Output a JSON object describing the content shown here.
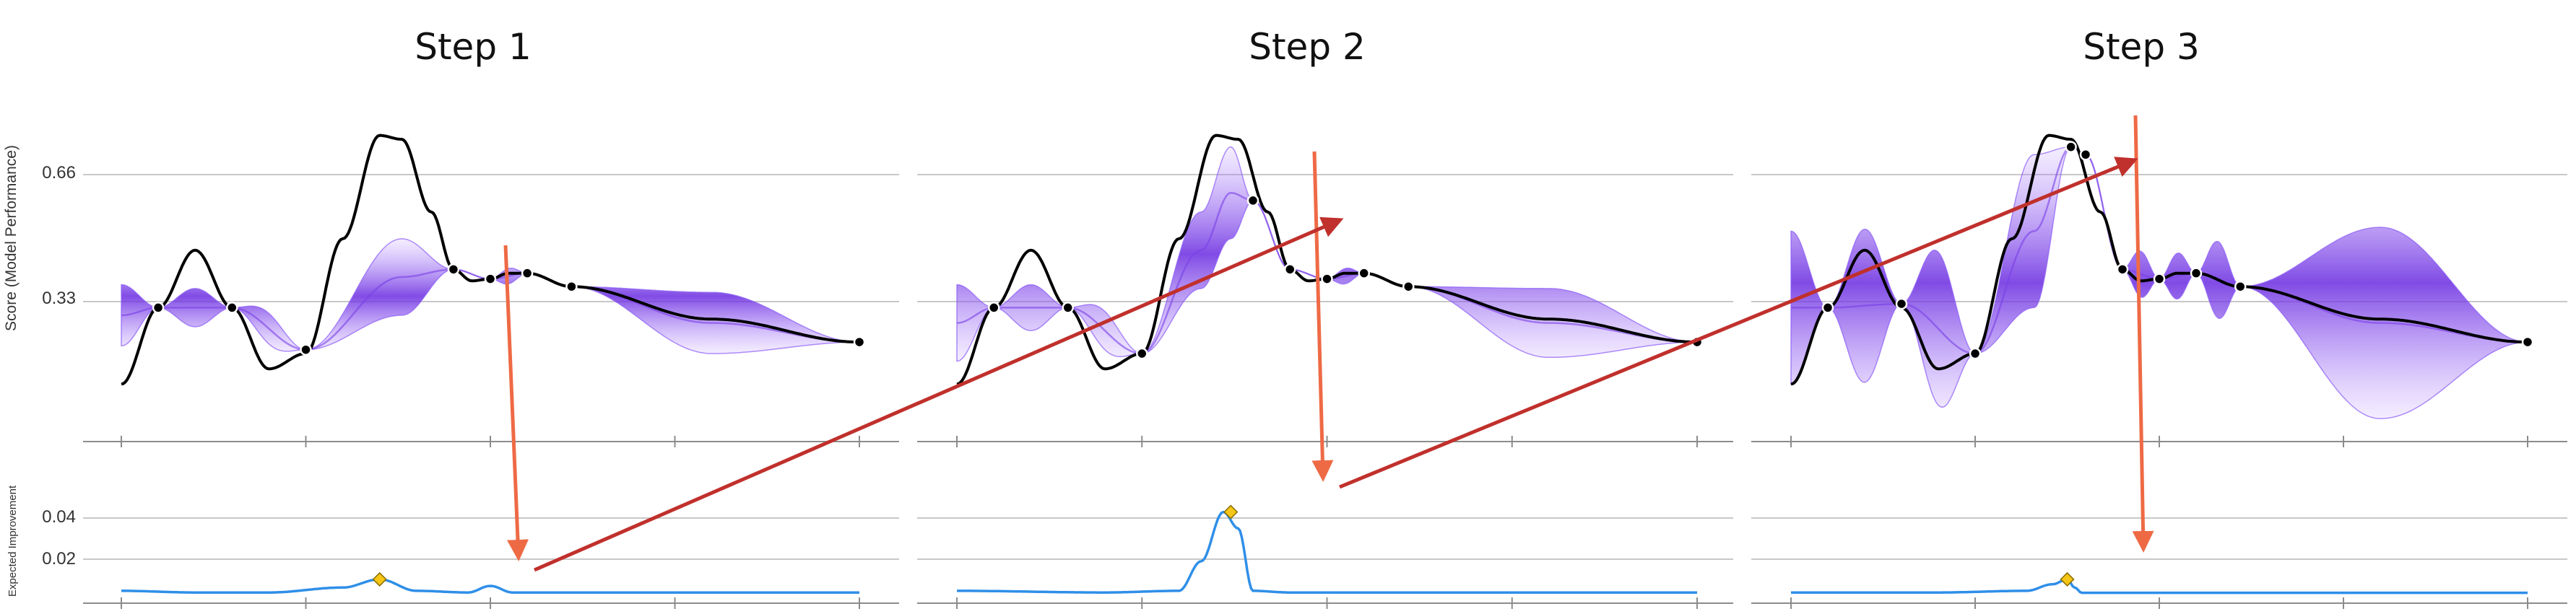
{
  "chart_data": {
    "type": "line",
    "ylabel_top": "Score (Model Performance)",
    "ylabel_bottom": "Expected Improvement",
    "top_yticks": [
      0.33,
      0.66
    ],
    "top_ylim": [
      -0.05,
      0.84
    ],
    "bottom_yticks": [
      0.02,
      0.04
    ],
    "bottom_ylim": [
      -0.002,
      0.063
    ],
    "xlim": [
      0,
      1
    ],
    "x_ticks": [
      0,
      0.25,
      0.5,
      0.75,
      1.0
    ],
    "grid": "horizontal",
    "colors": {
      "objective": "#000000",
      "mean": "#7a3fe6",
      "band": "#8b5cf6",
      "ei": "#2f8fe8",
      "candidate": "#f5c518",
      "red_arrow": "#c0302c",
      "orange_arrow": "#ee6a45"
    },
    "series": [
      {
        "name": "Step 1",
        "observations_x": [
          0.05,
          0.15,
          0.25,
          0.45,
          0.5,
          0.55,
          0.61,
          1.0
        ],
        "mean_points": [
          [
            0.0,
            0.28
          ],
          [
            0.05,
            0.3
          ],
          [
            0.15,
            0.3
          ],
          [
            0.25,
            0.19
          ],
          [
            0.38,
            0.38
          ],
          [
            0.45,
            0.4
          ],
          [
            0.5,
            0.375
          ],
          [
            0.55,
            0.39
          ],
          [
            0.61,
            0.355
          ],
          [
            0.8,
            0.26
          ],
          [
            1.0,
            0.21
          ]
        ],
        "band_width_points": [
          [
            0.0,
            0.08
          ],
          [
            0.05,
            0.0
          ],
          [
            0.1,
            0.05
          ],
          [
            0.15,
            0.0
          ],
          [
            0.2,
            0.04
          ],
          [
            0.25,
            0.0
          ],
          [
            0.38,
            0.1
          ],
          [
            0.45,
            0.0
          ],
          [
            0.5,
            0.0
          ],
          [
            0.525,
            0.02
          ],
          [
            0.55,
            0.0
          ],
          [
            0.61,
            0.0
          ],
          [
            0.8,
            0.08
          ],
          [
            1.0,
            0.0
          ]
        ],
        "ei_points": [
          [
            0.0,
            0.002
          ],
          [
            0.1,
            0.001
          ],
          [
            0.2,
            0.001
          ],
          [
            0.3,
            0.004
          ],
          [
            0.35,
            0.009
          ],
          [
            0.4,
            0.002
          ],
          [
            0.47,
            0.001
          ],
          [
            0.5,
            0.005
          ],
          [
            0.53,
            0.001
          ],
          [
            0.6,
            0.001
          ],
          [
            0.8,
            0.001
          ],
          [
            1.0,
            0.001
          ]
        ],
        "candidate": {
          "x": 0.35,
          "ei": 0.009
        }
      },
      {
        "name": "Step 2",
        "observations_x": [
          0.05,
          0.15,
          0.25,
          0.4,
          0.45,
          0.5,
          0.55,
          0.61,
          1.0
        ],
        "mean_points": [
          [
            0.0,
            0.26
          ],
          [
            0.05,
            0.3
          ],
          [
            0.15,
            0.3
          ],
          [
            0.25,
            0.18
          ],
          [
            0.33,
            0.45
          ],
          [
            0.37,
            0.6
          ],
          [
            0.4,
            0.58
          ],
          [
            0.45,
            0.4
          ],
          [
            0.5,
            0.375
          ],
          [
            0.55,
            0.39
          ],
          [
            0.61,
            0.355
          ],
          [
            0.8,
            0.26
          ],
          [
            1.0,
            0.21
          ]
        ],
        "band_width_points": [
          [
            0.0,
            0.1
          ],
          [
            0.05,
            0.0
          ],
          [
            0.1,
            0.06
          ],
          [
            0.15,
            0.0
          ],
          [
            0.2,
            0.05
          ],
          [
            0.25,
            0.0
          ],
          [
            0.33,
            0.1
          ],
          [
            0.37,
            0.12
          ],
          [
            0.4,
            0.0
          ],
          [
            0.45,
            0.0
          ],
          [
            0.5,
            0.0
          ],
          [
            0.525,
            0.02
          ],
          [
            0.55,
            0.0
          ],
          [
            0.61,
            0.0
          ],
          [
            0.8,
            0.09
          ],
          [
            1.0,
            0.0
          ]
        ],
        "ei_points": [
          [
            0.0,
            0.002
          ],
          [
            0.2,
            0.001
          ],
          [
            0.3,
            0.002
          ],
          [
            0.33,
            0.02
          ],
          [
            0.36,
            0.05
          ],
          [
            0.38,
            0.04
          ],
          [
            0.4,
            0.002
          ],
          [
            0.45,
            0.001
          ],
          [
            0.6,
            0.001
          ],
          [
            0.8,
            0.001
          ],
          [
            1.0,
            0.001
          ]
        ],
        "candidate": {
          "x": 0.37,
          "ei": 0.05
        }
      },
      {
        "name": "Step 3",
        "observations_x": [
          0.05,
          0.15,
          0.25,
          0.38,
          0.4,
          0.45,
          0.5,
          0.55,
          0.61,
          1.0
        ],
        "mean_points": [
          [
            0.0,
            0.3
          ],
          [
            0.05,
            0.3
          ],
          [
            0.15,
            0.31
          ],
          [
            0.25,
            0.18
          ],
          [
            0.33,
            0.5
          ],
          [
            0.38,
            0.72
          ],
          [
            0.4,
            0.7
          ],
          [
            0.45,
            0.4
          ],
          [
            0.5,
            0.375
          ],
          [
            0.55,
            0.39
          ],
          [
            0.61,
            0.355
          ],
          [
            0.8,
            0.26
          ],
          [
            1.0,
            0.21
          ]
        ],
        "band_width_points": [
          [
            0.0,
            0.2
          ],
          [
            0.05,
            0.0
          ],
          [
            0.1,
            0.2
          ],
          [
            0.15,
            0.0
          ],
          [
            0.2,
            0.2
          ],
          [
            0.25,
            0.0
          ],
          [
            0.33,
            0.2
          ],
          [
            0.38,
            0.0
          ],
          [
            0.4,
            0.0
          ],
          [
            0.45,
            0.0
          ],
          [
            0.475,
            0.06
          ],
          [
            0.5,
            0.0
          ],
          [
            0.525,
            0.06
          ],
          [
            0.55,
            0.0
          ],
          [
            0.58,
            0.1
          ],
          [
            0.61,
            0.0
          ],
          [
            0.8,
            0.25
          ],
          [
            1.0,
            0.0
          ]
        ],
        "ei_points": [
          [
            0.0,
            0.001
          ],
          [
            0.2,
            0.001
          ],
          [
            0.32,
            0.002
          ],
          [
            0.355,
            0.006
          ],
          [
            0.375,
            0.009
          ],
          [
            0.385,
            0.004
          ],
          [
            0.395,
            0.0008
          ],
          [
            0.45,
            0.0008
          ],
          [
            0.6,
            0.0008
          ],
          [
            0.8,
            0.0008
          ],
          [
            1.0,
            0.0008
          ]
        ],
        "candidate": {
          "x": 0.375,
          "ei": 0.009
        }
      }
    ],
    "objective_points": [
      [
        0.0,
        0.1
      ],
      [
        0.05,
        0.3
      ],
      [
        0.1,
        0.45
      ],
      [
        0.15,
        0.3
      ],
      [
        0.2,
        0.14
      ],
      [
        0.25,
        0.18
      ],
      [
        0.3,
        0.48
      ],
      [
        0.35,
        0.75
      ],
      [
        0.38,
        0.74
      ],
      [
        0.42,
        0.55
      ],
      [
        0.45,
        0.4
      ],
      [
        0.475,
        0.37
      ],
      [
        0.5,
        0.375
      ],
      [
        0.525,
        0.39
      ],
      [
        0.55,
        0.39
      ],
      [
        0.61,
        0.355
      ],
      [
        0.8,
        0.27
      ],
      [
        1.0,
        0.21
      ]
    ]
  }
}
